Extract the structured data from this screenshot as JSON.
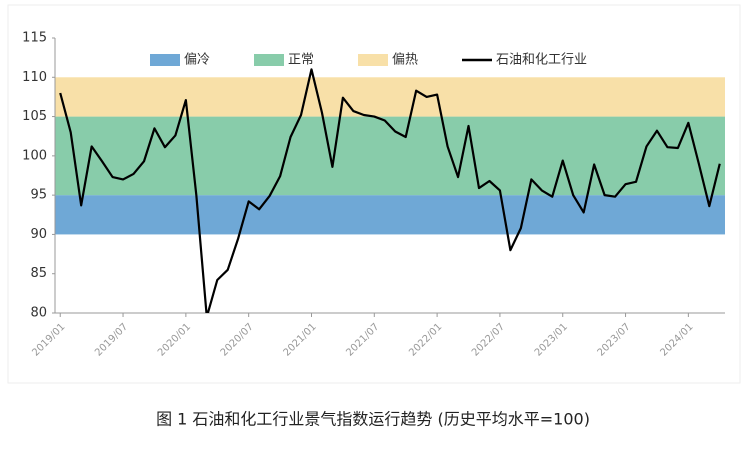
{
  "chart_data": {
    "type": "line",
    "caption": "图 1  石油和化工行业景气指数运行趋势 (历史平均水平=100)",
    "categories": [
      "2019/01",
      null,
      null,
      null,
      null,
      null,
      "2019/07",
      null,
      null,
      null,
      null,
      null,
      "2020/01",
      null,
      null,
      null,
      null,
      null,
      "2020/07",
      null,
      null,
      null,
      null,
      null,
      "2021/01",
      null,
      null,
      null,
      null,
      null,
      "2021/07",
      null,
      null,
      null,
      null,
      null,
      "2022/01",
      null,
      null,
      null,
      null,
      null,
      "2022/07",
      null,
      null,
      null,
      null,
      null,
      "2023/01",
      null,
      null,
      null,
      null,
      null,
      "2023/07",
      null,
      null,
      null,
      null,
      null,
      "2024/01",
      null,
      null,
      null
    ],
    "series": [
      {
        "name": "石油和化工行业",
        "color": "#000000",
        "values": [
          108,
          103,
          93.7,
          101.2,
          99.3,
          97.3,
          97,
          97.7,
          99.3,
          103.5,
          101.1,
          102.6,
          107.1,
          95,
          79.5,
          84.2,
          85.5,
          89.5,
          94.2,
          93.2,
          94.9,
          97.4,
          102.4,
          105.2,
          111,
          105.5,
          98.6,
          107.4,
          105.7,
          105.2,
          105,
          104.5,
          103.1,
          102.4,
          108.3,
          107.5,
          107.8,
          101.2,
          97.3,
          103.8,
          95.9,
          96.8,
          95.6,
          88,
          90.8,
          97,
          95.6,
          94.8,
          99.4,
          95,
          92.8,
          98.9,
          95,
          94.8,
          96.4,
          96.7,
          101.2,
          103.2,
          101.1,
          101,
          104.2,
          99,
          93.6,
          99
        ]
      }
    ],
    "bands": [
      {
        "name": "偏冷",
        "color": "#6fa8d6",
        "range": [
          90,
          95
        ]
      },
      {
        "name": "正常",
        "color": "#88ccaa",
        "range": [
          95,
          105
        ]
      },
      {
        "name": "偏热",
        "color": "#f8e0a8",
        "range": [
          105,
          110
        ]
      }
    ],
    "ylim": [
      80,
      115
    ],
    "yticks": [
      80,
      85,
      90,
      95,
      100,
      105,
      110,
      115
    ],
    "grid": false
  }
}
